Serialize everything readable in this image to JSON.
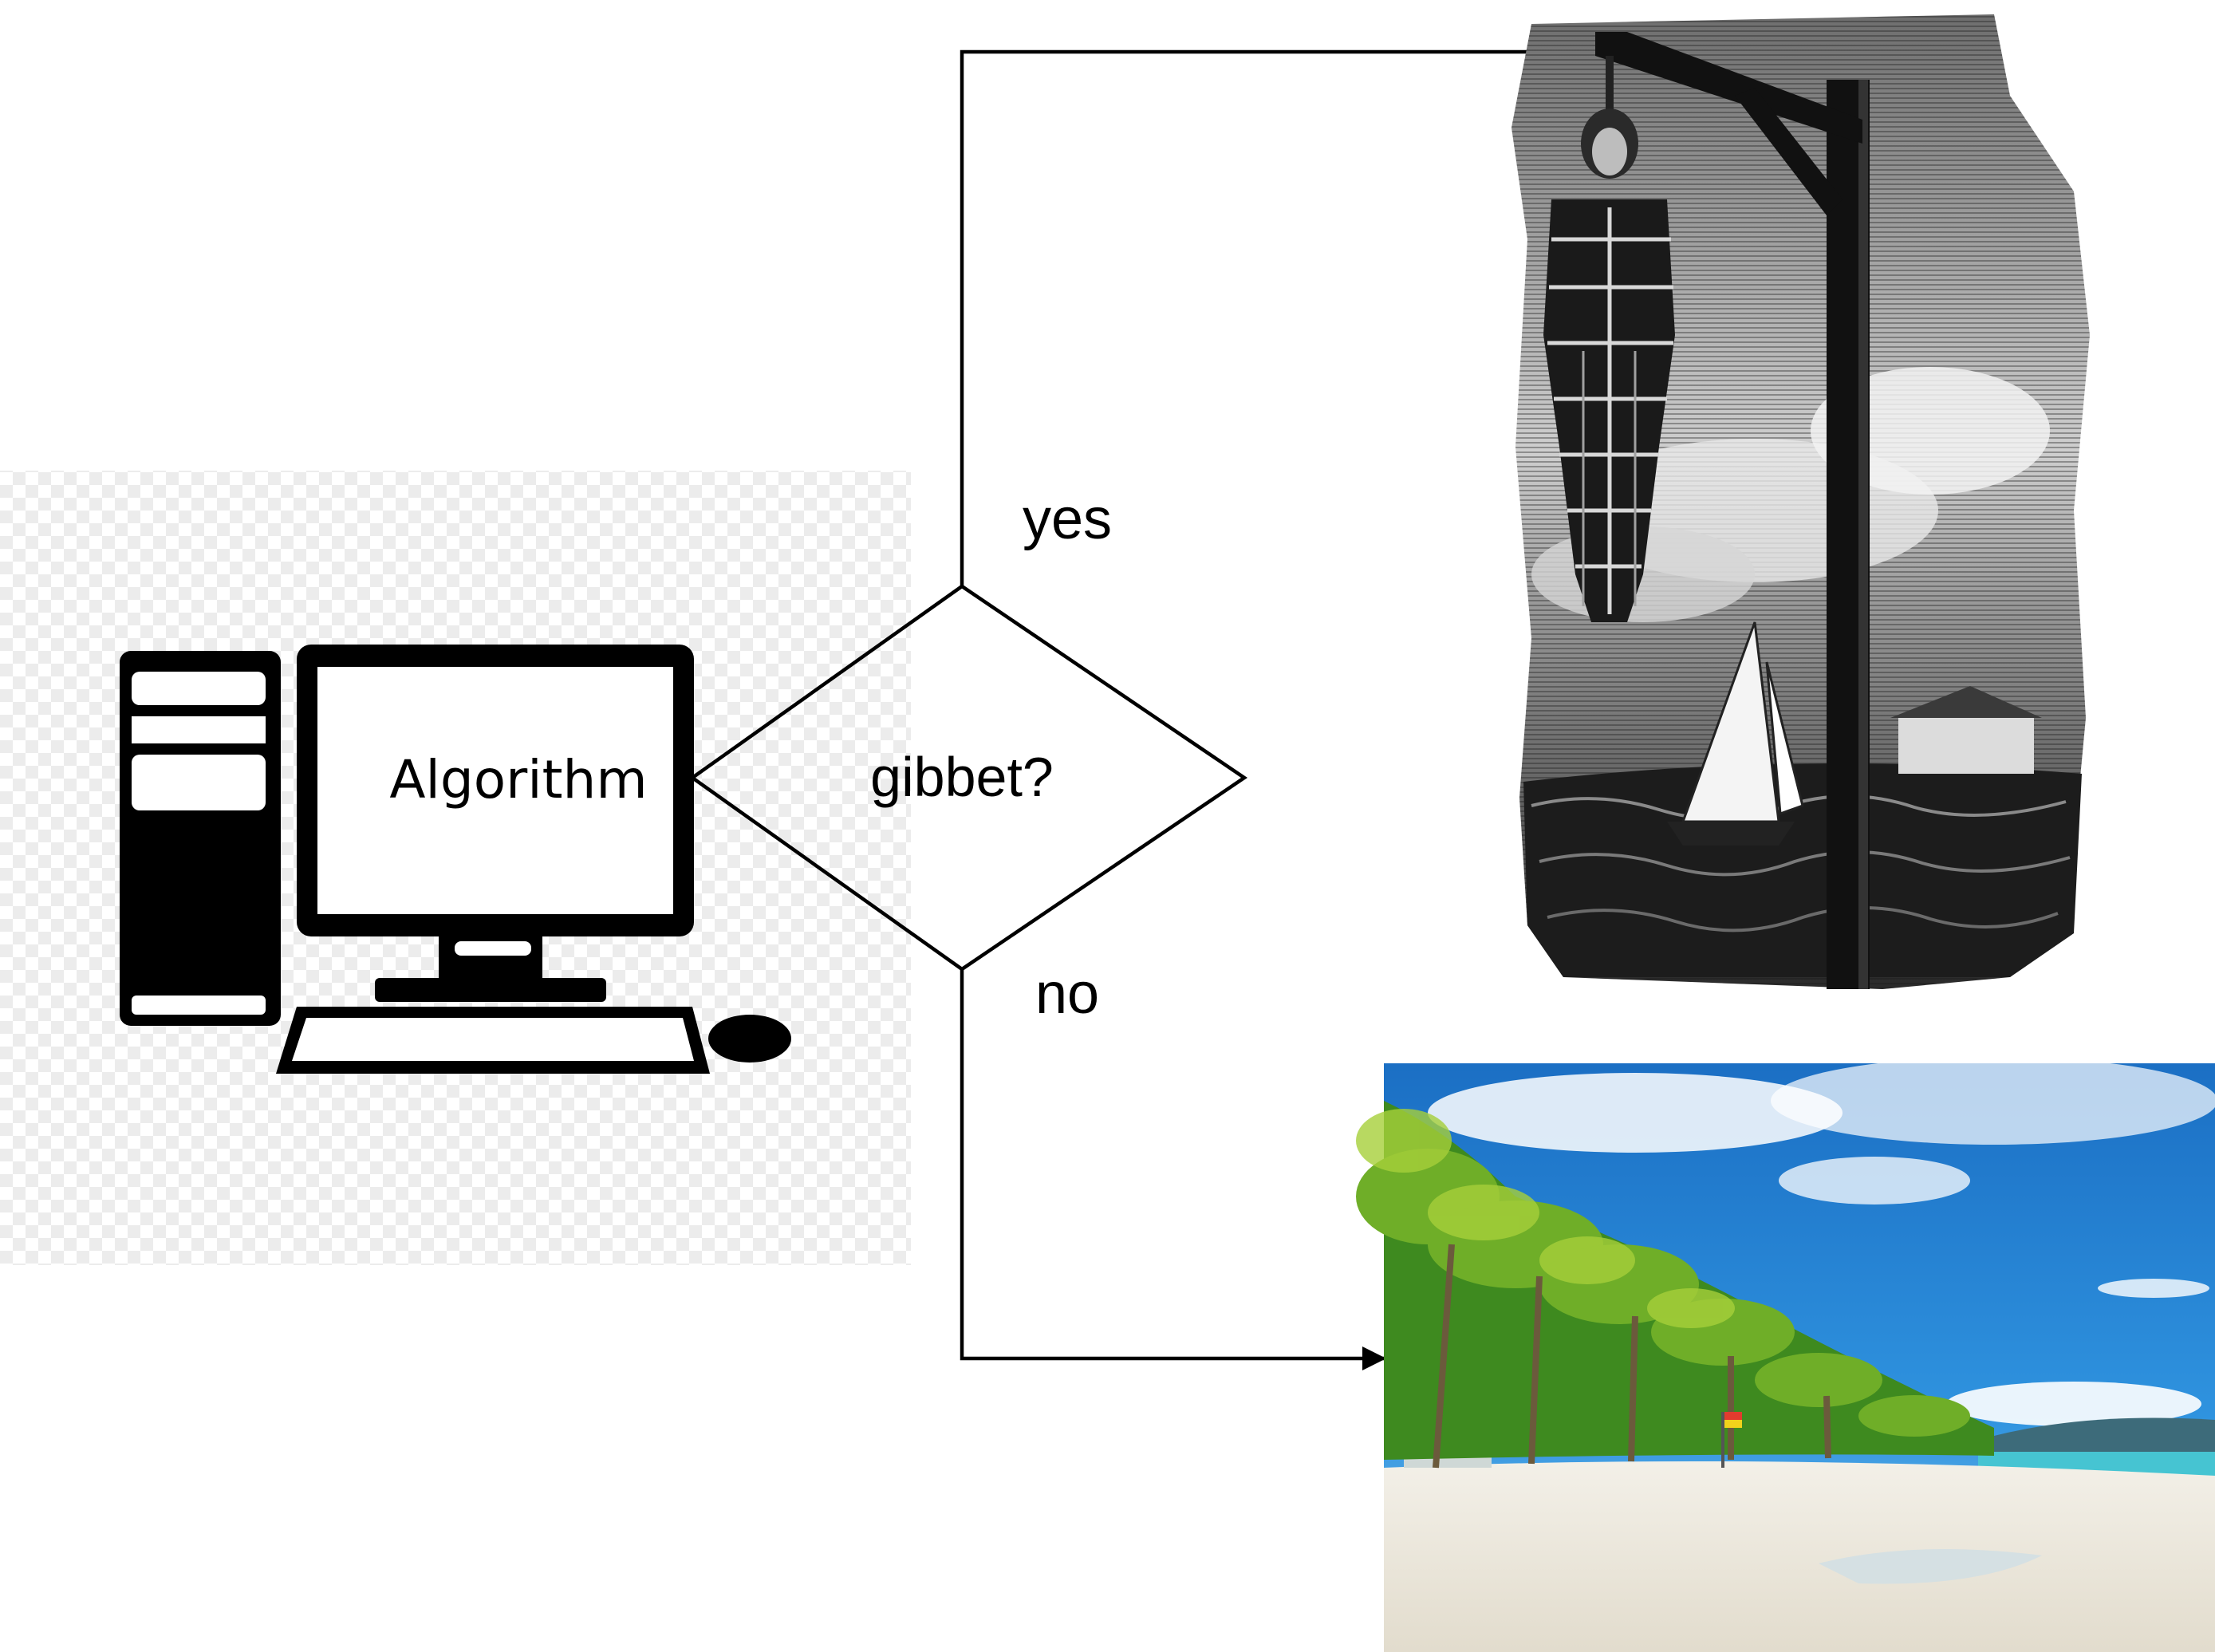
{
  "diagram": {
    "process_label": "Algorithm",
    "decision_label": "gibbet?",
    "yes_label": "yes",
    "no_label": "no"
  },
  "illustrations": {
    "computer": "computer-icon",
    "gibbet": "gibbet-engraving",
    "beach": "tropical-beach-photo"
  },
  "colors": {
    "line": "#000000",
    "sky": "#1f7fcf",
    "sand": "#ece7dc",
    "palm": "#3f8f1c",
    "sea": "#3fbfcf"
  }
}
